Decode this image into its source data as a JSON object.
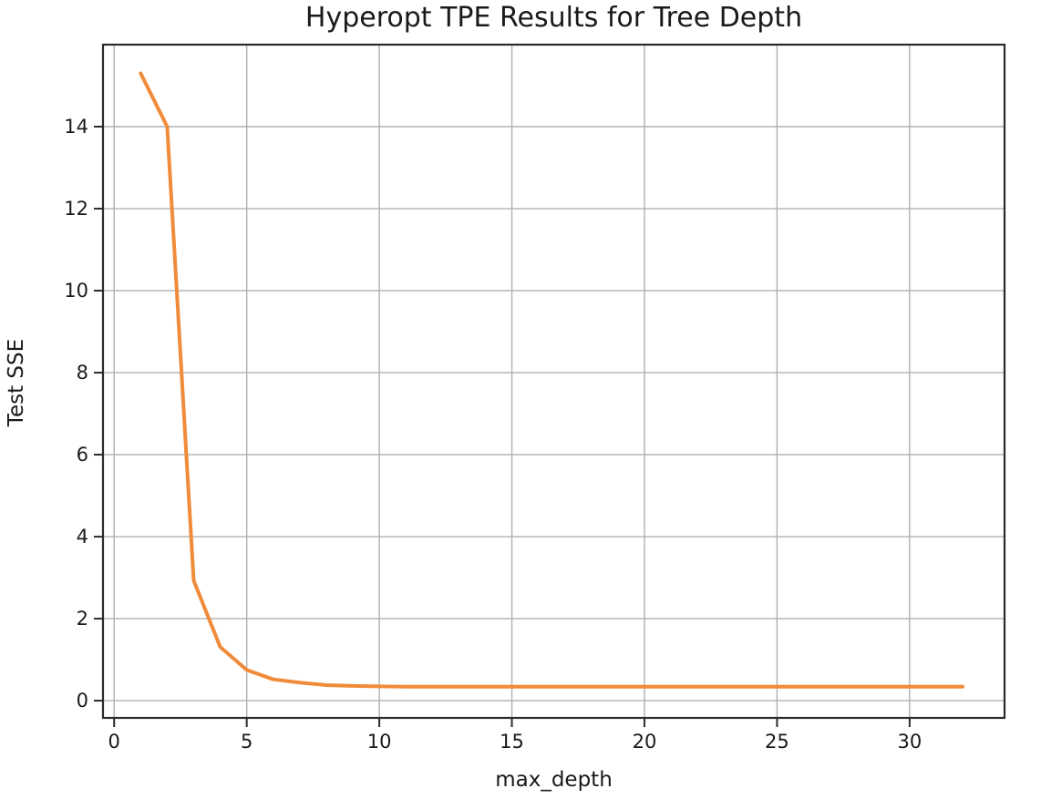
{
  "chart_data": {
    "type": "line",
    "title": "Hyperopt TPE Results for Tree Depth",
    "xlabel": "max_depth",
    "ylabel": "Test SSE",
    "x": [
      1,
      2,
      3,
      4,
      5,
      6,
      7,
      8,
      9,
      10,
      11,
      12,
      13,
      14,
      15,
      16,
      17,
      18,
      19,
      20,
      21,
      22,
      23,
      24,
      25,
      26,
      27,
      28,
      29,
      30,
      31,
      32
    ],
    "y": [
      15.3,
      14.0,
      2.93,
      1.31,
      0.75,
      0.52,
      0.44,
      0.38,
      0.36,
      0.35,
      0.34,
      0.34,
      0.34,
      0.34,
      0.34,
      0.34,
      0.34,
      0.34,
      0.34,
      0.34,
      0.34,
      0.34,
      0.34,
      0.34,
      0.34,
      0.34,
      0.34,
      0.34,
      0.34,
      0.34,
      0.34,
      0.34
    ],
    "xticks": [
      0,
      5,
      10,
      15,
      20,
      25,
      30
    ],
    "yticks": [
      0,
      2,
      4,
      6,
      8,
      10,
      12,
      14
    ],
    "xlim": [
      -0.42,
      33.58
    ],
    "ylim": [
      -0.42,
      16.0
    ],
    "grid": true,
    "legend": "none",
    "colors": {
      "line": "#f08b3a",
      "grid": "#b0b0b0",
      "spine": "#2b2b2b",
      "background": "#ffffff",
      "text": "#1a1a1a"
    }
  }
}
